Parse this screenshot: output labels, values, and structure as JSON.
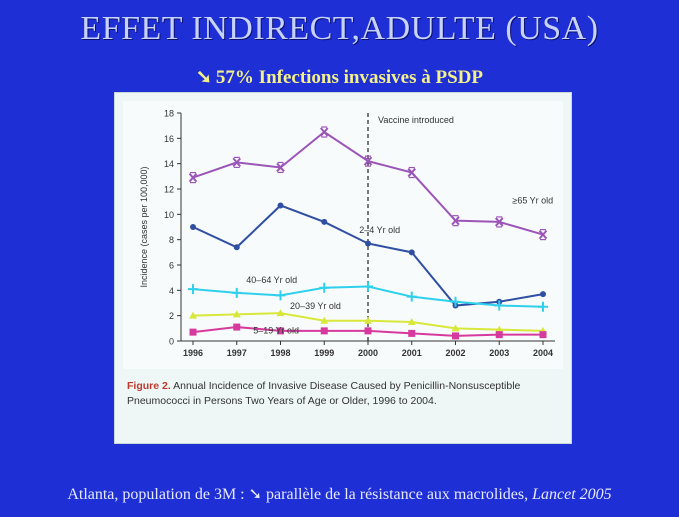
{
  "slide": {
    "title": "EFFET INDIRECT,ADULTE (USA)",
    "subtitle_arrow": "➘",
    "subtitle": "57% Infections invasives à PSDP",
    "footer_pre": "Atlanta, population de 3M :",
    "footer_arrow": "➘",
    "footer_mid": "parallèle de la résistance aux macrolides,",
    "footer_journal": "Lancet 2005",
    "colors": {
      "background": "#1f2fd6",
      "title": "#c8d2ff",
      "subtitle": "#f4f08a"
    }
  },
  "figure": {
    "label": "Figure 2.",
    "caption": "Annual Incidence of Invasive Disease Caused by Penicillin-Nonsusceptible Pneumococci in Persons Two Years of Age or Older, 1996 to 2004."
  },
  "chart_data": {
    "type": "line",
    "x": [
      "1996",
      "1997",
      "1998",
      "1999",
      "2000",
      "2001",
      "2002",
      "2003",
      "2004"
    ],
    "ylabel": "Incidence (cases per 100,000)",
    "ylim": [
      0,
      18
    ],
    "yticks": [
      0,
      2,
      4,
      6,
      8,
      10,
      12,
      14,
      16,
      18
    ],
    "grid": false,
    "annotation": {
      "x": "2000",
      "label": "Vaccine introduced"
    },
    "series": [
      {
        "name": "≥65 Yr old",
        "color": "#9b55b8",
        "marker": "x",
        "values": [
          12.9,
          14.1,
          13.7,
          16.5,
          14.2,
          13.3,
          9.5,
          9.4,
          8.4
        ]
      },
      {
        "name": "2–4 Yr old",
        "color": "#2f4fa3",
        "marker": "circle",
        "values": [
          9.0,
          7.4,
          10.7,
          9.4,
          7.7,
          7.0,
          2.8,
          3.1,
          3.7
        ]
      },
      {
        "name": "40–64 Yr old",
        "color": "#2fd0ec",
        "marker": "plus",
        "values": [
          4.1,
          3.8,
          3.6,
          4.2,
          4.3,
          3.5,
          3.1,
          2.8,
          2.7
        ]
      },
      {
        "name": "20–39 Yr old",
        "color": "#d8e83a",
        "marker": "triangle",
        "values": [
          2.0,
          2.1,
          2.2,
          1.6,
          1.6,
          1.5,
          1.0,
          0.9,
          0.8
        ]
      },
      {
        "name": "5–19 Yr old",
        "color": "#d63a9e",
        "marker": "square",
        "values": [
          0.7,
          1.1,
          0.8,
          0.8,
          0.8,
          0.6,
          0.4,
          0.5,
          0.5
        ]
      }
    ]
  }
}
